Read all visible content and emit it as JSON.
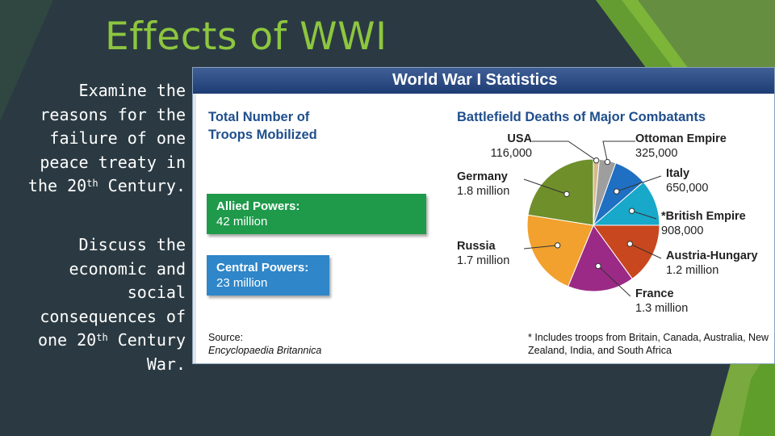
{
  "slide": {
    "title": "Effects of WWI",
    "para1": {
      "line1": "Examine the",
      "line2": "reasons for the",
      "line3": "failure of one",
      "line4": "peace treaty in",
      "line5_pre": "the 20",
      "line5_sup": "th",
      "line5_post": " Century."
    },
    "para2": {
      "line1": "Discuss the",
      "line2": "economic and",
      "line3": "social",
      "line4": "consequences of",
      "line5_pre": "one 20",
      "line5_sup": "th",
      "line5_post": " Century",
      "line6": "War."
    }
  },
  "infographic": {
    "title": "World War I Statistics",
    "troops_title": "Total Number of Troops Mobilized",
    "allied": {
      "name": "Allied Powers:",
      "value": "42 million"
    },
    "central": {
      "name": "Central Powers:",
      "value": "23 million"
    },
    "deaths_title": "Battlefield Deaths of Major Combatants",
    "source_label": "Source:",
    "source_title": "Encyclopaedia Britannica",
    "footnote": "* Includes troops from Britain, Canada, Australia, New Zealand, India, and South Africa"
  },
  "colors": {
    "accent_green": "#8dc63f",
    "background": "#2b3a42"
  },
  "chart_data": {
    "type": "pie",
    "title": "Battlefield Deaths of Major Combatants",
    "slices": [
      {
        "label": "USA",
        "value_label": "116,000",
        "value": 116000,
        "color": "#d7b98a"
      },
      {
        "label": "Ottoman Empire",
        "value_label": "325,000",
        "value": 325000,
        "color": "#9e9e9e"
      },
      {
        "label": "Italy",
        "value_label": "650,000",
        "value": 650000,
        "color": "#1f6fc2"
      },
      {
        "label": "*British Empire",
        "value_label": "908,000",
        "value": 908000,
        "color": "#18a8c9"
      },
      {
        "label": "Austria-Hungary",
        "value_label": "1.2 million",
        "value": 1200000,
        "color": "#c8471e"
      },
      {
        "label": "France",
        "value_label": "1.3 million",
        "value": 1300000,
        "color": "#9b2a86"
      },
      {
        "label": "Russia",
        "value_label": "1.7 million",
        "value": 1700000,
        "color": "#f2a12e"
      },
      {
        "label": "Germany",
        "value_label": "1.8 million",
        "value": 1800000,
        "color": "#6f8f2b"
      }
    ]
  }
}
